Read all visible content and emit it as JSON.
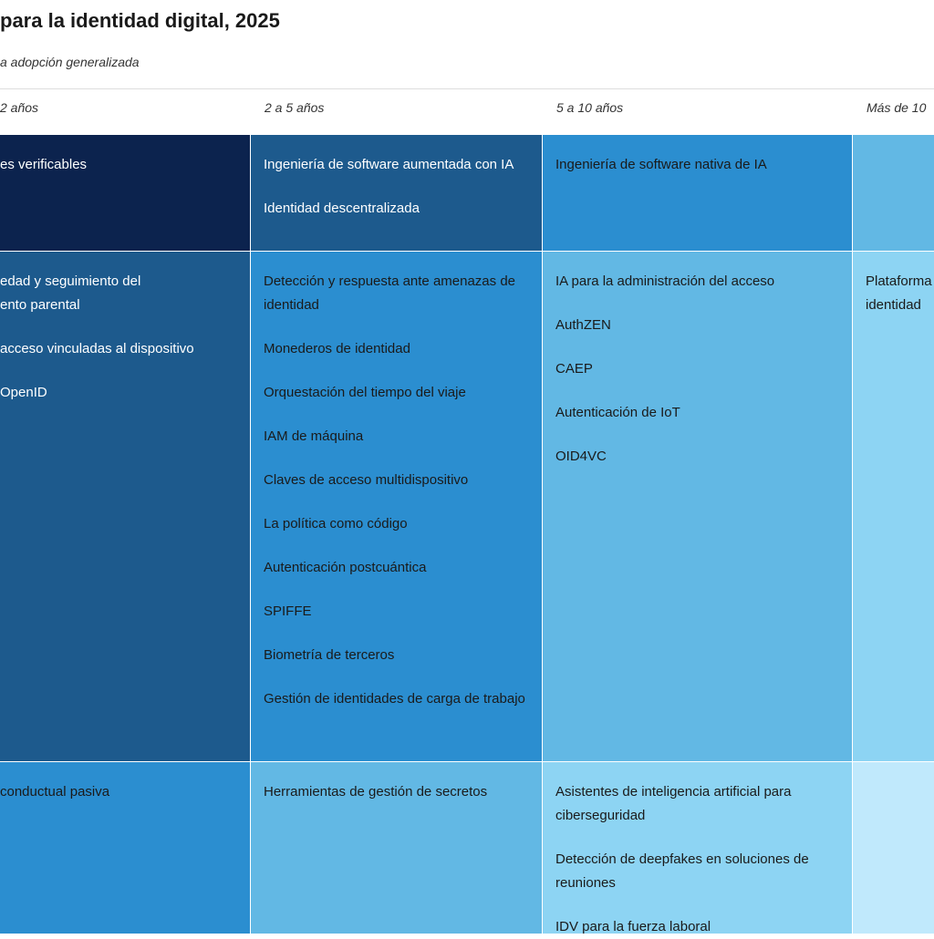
{
  "chart_data": {
    "type": "table",
    "title": "para la identidad digital, 2025",
    "subtitle": "a adopción generalizada",
    "columns": [
      "2 años",
      "2 a 5 años",
      "5 a 10 años",
      "Más de 10"
    ],
    "colors": [
      "#0c234e",
      "#1d5a8d",
      "#2b8ed0",
      "#62b8e4",
      "#8dd4f3",
      "#c0e9fc"
    ],
    "rows": [
      {
        "cells": [
          [
            "es verificables"
          ],
          [
            "Ingeniería de software aumentada con IA",
            "Identidad descentralizada"
          ],
          [
            "Ingeniería de software nativa de IA"
          ],
          []
        ]
      },
      {
        "cells": [
          [
            "edad y seguimiento del ento parental",
            "acceso vinculadas al dispositivo",
            "OpenID"
          ],
          [
            "Detección y respuesta ante amenazas de identidad",
            "Monederos de identidad",
            "Orquestación del tiempo del viaje",
            "IAM de máquina",
            "Claves de acceso multidispositivo",
            "La política como código",
            "Autenticación postcuántica",
            "SPIFFE",
            "Biometría de terceros",
            "Gestión de identidades de carga de trabajo"
          ],
          [
            "IA para la administración del acceso",
            "AuthZEN",
            "CAEP",
            "Autenticación de IoT",
            "OID4VC"
          ],
          [
            "Plataforma identidad"
          ]
        ]
      },
      {
        "cells": [
          [
            "conductual pasiva"
          ],
          [
            "Herramientas de gestión de secretos"
          ],
          [
            "Asistentes de inteligencia artificial para ciberseguridad",
            "Detección de deepfakes en soluciones de reuniones",
            "IDV para la fuerza laboral"
          ],
          []
        ]
      }
    ]
  }
}
